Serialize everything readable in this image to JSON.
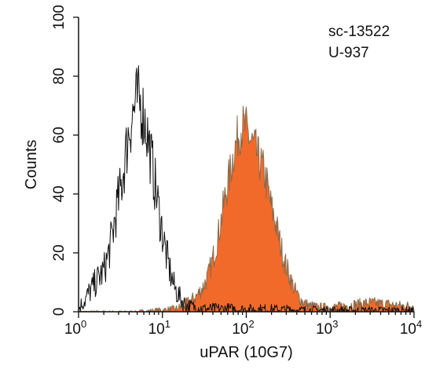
{
  "chart_data": {
    "type": "area",
    "xlabel": "uPAR (10G7)",
    "ylabel": "Counts",
    "xscale": "log",
    "xlim": [
      1,
      10000
    ],
    "ylim": [
      0,
      100
    ],
    "grid": false,
    "x_ticks": [
      {
        "value": 1,
        "base": "10",
        "exp": "0"
      },
      {
        "value": 10,
        "base": "10",
        "exp": "1"
      },
      {
        "value": 100,
        "base": "10",
        "exp": "2"
      },
      {
        "value": 1000,
        "base": "10",
        "exp": "3"
      },
      {
        "value": 10000,
        "base": "10",
        "exp": "4"
      }
    ],
    "y_ticks": [
      "0",
      "20",
      "40",
      "60",
      "80",
      "100"
    ],
    "annotations": [
      "sc-13522",
      "U-937"
    ],
    "colors": {
      "filled": "#f26a2a",
      "filled_edge": "#8a6a4a",
      "control": "#111111"
    },
    "series": [
      {
        "style": "outline",
        "x": [
          1.0,
          1.1,
          1.2,
          1.3,
          1.45,
          1.6,
          1.8,
          2.0,
          2.2,
          2.5,
          2.8,
          3.2,
          3.6,
          4.0,
          4.5,
          5.0,
          5.6,
          6.3,
          7.0,
          7.9,
          8.9,
          10,
          11,
          12.5,
          14,
          16,
          18,
          20,
          25,
          32,
          40,
          50,
          63,
          80,
          100,
          200,
          500,
          1000,
          2000,
          5000,
          10000
        ],
        "y": [
          1,
          3,
          4,
          6,
          8,
          10,
          12,
          14,
          18,
          25,
          34,
          42,
          52,
          62,
          68,
          72,
          70,
          64,
          56,
          46,
          36,
          27,
          20,
          13,
          8,
          5,
          3,
          2,
          1.5,
          1,
          1,
          1,
          1,
          0.8,
          0.8,
          0.8,
          0.5,
          0.5,
          0.4,
          0.4,
          0.4
        ]
      },
      {
        "style": "filled",
        "x": [
          1.0,
          5,
          10,
          15,
          20,
          25,
          30,
          35,
          40,
          45,
          50,
          56,
          63,
          70,
          80,
          90,
          100,
          112,
          125,
          140,
          160,
          180,
          200,
          225,
          250,
          280,
          320,
          360,
          400,
          450,
          500,
          560,
          630,
          700,
          800,
          1000,
          1500,
          2000,
          3000,
          5000,
          7000,
          10000
        ],
        "y": [
          0,
          0,
          0.5,
          1,
          3,
          5,
          8,
          12,
          18,
          24,
          31,
          39,
          46,
          53,
          60,
          63,
          62,
          58,
          56,
          52,
          48,
          42,
          35,
          30,
          24,
          18,
          13,
          9,
          6,
          4,
          3,
          2,
          2,
          1.5,
          1.5,
          1.5,
          2,
          2.5,
          3,
          2.5,
          2,
          2
        ]
      }
    ]
  }
}
